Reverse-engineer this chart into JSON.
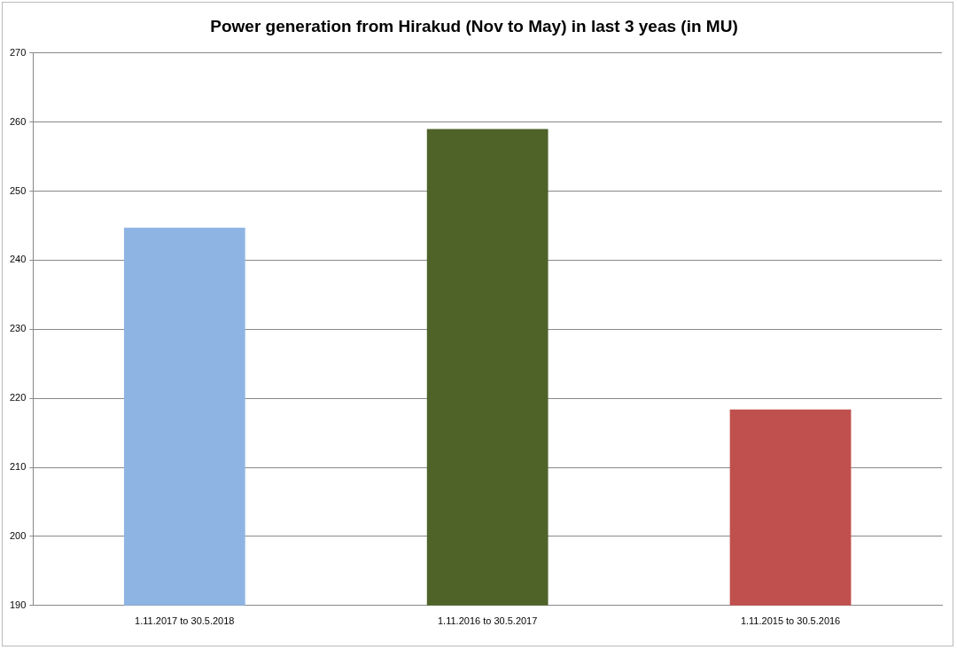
{
  "chart_data": {
    "type": "bar",
    "title": "Power generation from Hirakud (Nov to May) in last 3 yeas (in MU)",
    "categories": [
      "1.11.2017 to 30.5.2018",
      "1.11.2016 to 30.5.2017",
      "1.11.2015 to 30.5.2016"
    ],
    "values": [
      244.7,
      259,
      218.4
    ],
    "colors": [
      "#8eb4e3",
      "#4f6228",
      "#c0504d"
    ],
    "ylim": [
      190,
      270
    ],
    "yticks": [
      190,
      200,
      210,
      220,
      230,
      240,
      250,
      260,
      270
    ],
    "grid": "y",
    "legend": false
  }
}
